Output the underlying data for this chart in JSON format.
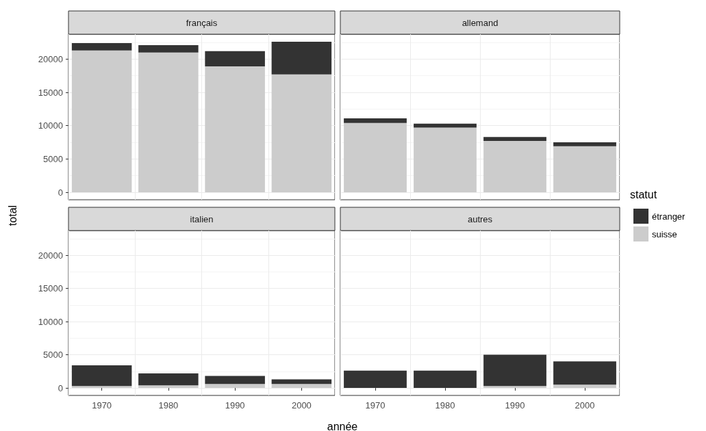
{
  "chart_data": [
    {
      "type": "bar",
      "title": "français",
      "ylabel": "total",
      "categories": [
        "1970",
        "1980",
        "1990",
        "2000"
      ],
      "stacked": true,
      "ylim": [
        -1130,
        23740
      ],
      "yticks": [
        0,
        5000,
        10000,
        15000,
        20000
      ],
      "grid": true,
      "tick_labels": "y",
      "series": [
        {
          "color": "#cccccc",
          "values": [
            21300,
            21000,
            18900,
            17700
          ]
        },
        {
          "color": "#333333",
          "values": [
            1100,
            1100,
            2300,
            4900
          ]
        }
      ]
    },
    {
      "type": "bar",
      "title": "allemand",
      "legend_title": "statut",
      "legend": "right",
      "categories": [
        "1970",
        "1980",
        "1990",
        "2000"
      ],
      "stacked": true,
      "ylim": [
        -1130,
        23740
      ],
      "yticks": [
        0,
        5000,
        10000,
        15000,
        20000
      ],
      "grid": true,
      "tick_labels": false,
      "series": [
        {
          "name": "suisse",
          "color": "#cccccc",
          "values": [
            10400,
            9700,
            7700,
            6900
          ]
        },
        {
          "name": "étranger",
          "color": "#333333",
          "values": [
            700,
            600,
            600,
            600
          ]
        }
      ]
    },
    {
      "type": "bar",
      "title": "italien",
      "xlabel": "année",
      "categories": [
        "1970",
        "1980",
        "1990",
        "2000"
      ],
      "stacked": true,
      "ylim": [
        -1130,
        23740
      ],
      "yticks": [
        0,
        5000,
        10000,
        15000,
        20000
      ],
      "grid": true,
      "series": [
        {
          "color": "#cccccc",
          "values": [
            300,
            400,
            600,
            600
          ]
        },
        {
          "color": "#333333",
          "values": [
            3100,
            1800,
            1200,
            700
          ]
        }
      ]
    },
    {
      "type": "bar",
      "title": "autres",
      "categories": [
        "1970",
        "1980",
        "1990",
        "2000"
      ],
      "stacked": true,
      "ylim": [
        -1130,
        23740
      ],
      "yticks": [
        0,
        5000,
        10000,
        15000,
        20000
      ],
      "grid": true,
      "tick_labels": "x",
      "series": [
        {
          "color": "#cccccc",
          "values": [
            null,
            null,
            300,
            500
          ]
        },
        {
          "color": "#333333",
          "values": [
            2600,
            2600,
            4700,
            3500
          ]
        }
      ]
    }
  ]
}
